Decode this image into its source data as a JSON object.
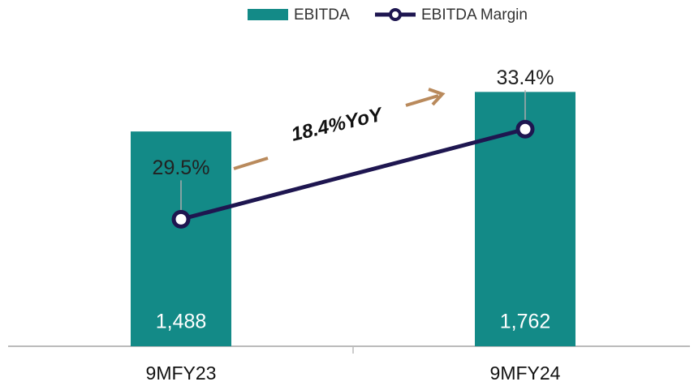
{
  "chart_data": {
    "type": "bar",
    "categories": [
      "9MFY23",
      "9MFY24"
    ],
    "series": [
      {
        "name": "EBITDA",
        "type": "bar",
        "color": "#138a87",
        "values": [
          1488,
          1762
        ],
        "value_labels": [
          "1,488",
          "1,762"
        ]
      },
      {
        "name": "EBITDA Margin",
        "type": "line",
        "axis": "y2",
        "color": "#1e1650",
        "values": [
          29.5,
          33.4
        ],
        "value_labels": [
          "29.5%",
          "33.4%"
        ]
      }
    ],
    "ylim": [
      0,
      2000
    ],
    "y2lim": [
      24,
      36.5
    ],
    "annotations": [
      "18.4%YoY"
    ],
    "legend": "top"
  }
}
